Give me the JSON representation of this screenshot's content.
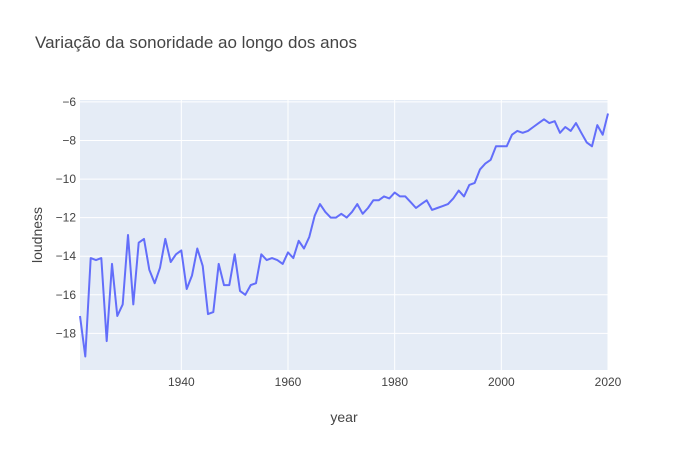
{
  "chart_data": {
    "type": "line",
    "title": "Variação da sonoridade ao longo dos anos",
    "xlabel": "year",
    "ylabel": "loudness",
    "xlim": [
      1921,
      2020
    ],
    "ylim": [
      -19.9,
      -5.9
    ],
    "x_ticks": [
      1940,
      1960,
      1980,
      2000,
      2020
    ],
    "y_ticks": [
      -18,
      -16,
      -14,
      -12,
      -10,
      -8,
      -6
    ],
    "grid": true,
    "legend": "none",
    "colors": {
      "line": "#636efa",
      "plot_bg": "#e5ecf6",
      "grid": "#ffffff"
    },
    "series": [
      {
        "x": [
          1921,
          1922,
          1923,
          1924,
          1925,
          1926,
          1927,
          1928,
          1929,
          1930,
          1931,
          1932,
          1933,
          1934,
          1935,
          1936,
          1937,
          1938,
          1939,
          1940,
          1941,
          1942,
          1943,
          1944,
          1945,
          1946,
          1947,
          1948,
          1949,
          1950,
          1951,
          1952,
          1953,
          1954,
          1955,
          1956,
          1957,
          1958,
          1959,
          1960,
          1961,
          1962,
          1963,
          1964,
          1965,
          1966,
          1967,
          1968,
          1969,
          1970,
          1971,
          1972,
          1973,
          1974,
          1975,
          1976,
          1977,
          1978,
          1979,
          1980,
          1981,
          1982,
          1983,
          1984,
          1985,
          1986,
          1987,
          1988,
          1989,
          1990,
          1991,
          1992,
          1993,
          1994,
          1995,
          1996,
          1997,
          1998,
          1999,
          2000,
          2001,
          2002,
          2003,
          2004,
          2005,
          2006,
          2007,
          2008,
          2009,
          2010,
          2011,
          2012,
          2013,
          2014,
          2015,
          2016,
          2017,
          2018,
          2019,
          2020
        ],
        "y": [
          -17.1,
          -19.2,
          -14.1,
          -14.2,
          -14.1,
          -18.4,
          -14.4,
          -17.1,
          -16.5,
          -12.9,
          -16.5,
          -13.3,
          -13.1,
          -14.7,
          -15.4,
          -14.6,
          -13.1,
          -14.3,
          -13.9,
          -13.7,
          -15.7,
          -15.0,
          -13.6,
          -14.5,
          -17.0,
          -16.9,
          -14.4,
          -15.5,
          -15.5,
          -13.9,
          -15.8,
          -16.0,
          -15.5,
          -15.4,
          -13.9,
          -14.2,
          -14.1,
          -14.2,
          -14.4,
          -13.8,
          -14.1,
          -13.2,
          -13.6,
          -13.0,
          -11.9,
          -11.3,
          -11.7,
          -12.0,
          -12.0,
          -11.8,
          -12.0,
          -11.7,
          -11.3,
          -11.8,
          -11.5,
          -11.1,
          -11.1,
          -10.9,
          -11.0,
          -10.7,
          -10.9,
          -10.9,
          -11.2,
          -11.5,
          -11.3,
          -11.1,
          -11.6,
          -11.5,
          -11.4,
          -11.3,
          -11.0,
          -10.6,
          -10.9,
          -10.3,
          -10.2,
          -9.5,
          -9.2,
          -9.0,
          -8.3,
          -8.3,
          -8.3,
          -7.7,
          -7.5,
          -7.6,
          -7.5,
          -7.3,
          -7.1,
          -6.9,
          -7.1,
          -7.0,
          -7.6,
          -7.3,
          -7.5,
          -7.1,
          -7.6,
          -8.1,
          -8.3,
          -7.2,
          -7.7,
          -6.6
        ]
      }
    ]
  }
}
